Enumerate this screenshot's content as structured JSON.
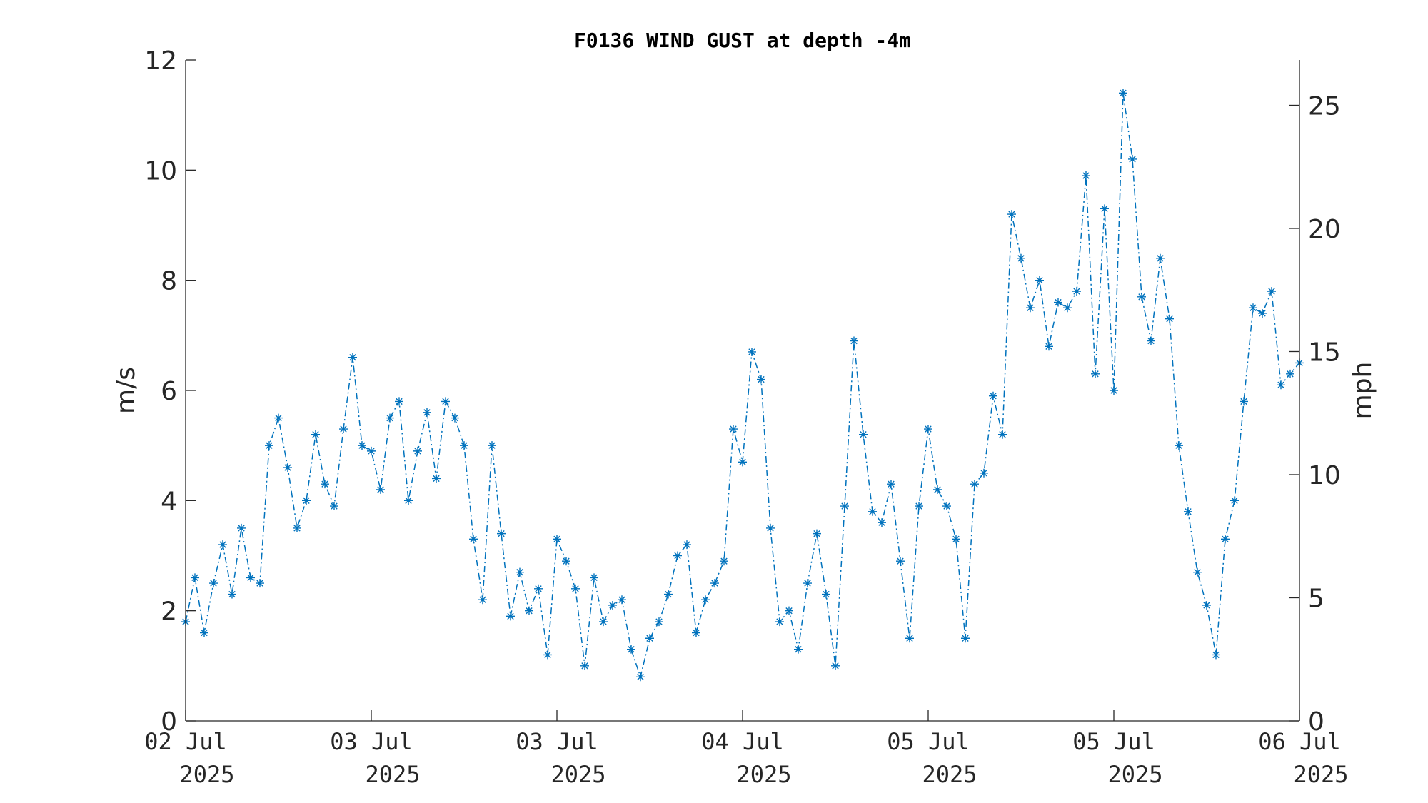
{
  "chart_data": {
    "type": "line",
    "title": "F0136 WIND GUST at depth -4m",
    "ylabel": "m/s",
    "ylabel_right": "mph",
    "ylim": [
      0,
      12
    ],
    "ylim_right": [
      0,
      26.84
    ],
    "yticks": [
      0,
      2,
      4,
      6,
      8,
      10,
      12
    ],
    "yticks_right": [
      0,
      5,
      10,
      15,
      20,
      25
    ],
    "xlim": [
      0,
      6
    ],
    "xticks": [
      {
        "line1": "02 Jul",
        "line2": "2025"
      },
      {
        "line1": "03 Jul",
        "line2": "2025"
      },
      {
        "line1": "03 Jul",
        "line2": "2025"
      },
      {
        "line1": "04 Jul",
        "line2": "2025"
      },
      {
        "line1": "05 Jul",
        "line2": "2025"
      },
      {
        "line1": "05 Jul",
        "line2": "2025"
      },
      {
        "line1": "06 Jul",
        "line2": "2025"
      }
    ],
    "line_style": "dash-dot",
    "marker": "asterisk",
    "color": "#0072BD",
    "grid": false,
    "series": [
      {
        "x": [
          0.0,
          0.05,
          0.1,
          0.15,
          0.2,
          0.25,
          0.3,
          0.35,
          0.4,
          0.45,
          0.5,
          0.55,
          0.6,
          0.65,
          0.7,
          0.75,
          0.8,
          0.85,
          0.9,
          0.95,
          1.0,
          1.05,
          1.1,
          1.15,
          1.2,
          1.25,
          1.3,
          1.35,
          1.4,
          1.45,
          1.5,
          1.55,
          1.6,
          1.65,
          1.7,
          1.75,
          1.8,
          1.85,
          1.9,
          1.95,
          2.0,
          2.05,
          2.1,
          2.15,
          2.2,
          2.25,
          2.3,
          2.35,
          2.4,
          2.45,
          2.5,
          2.55,
          2.6,
          2.65,
          2.7,
          2.75,
          2.8,
          2.85,
          2.9,
          2.95,
          3.0,
          3.05,
          3.1,
          3.15,
          3.2,
          3.25,
          3.3,
          3.35,
          3.4,
          3.45,
          3.5,
          3.55,
          3.6,
          3.65,
          3.7,
          3.75,
          3.8,
          3.85,
          3.9,
          3.95,
          4.0,
          4.05,
          4.1,
          4.15,
          4.2,
          4.25,
          4.3,
          4.35,
          4.4,
          4.45,
          4.5,
          4.55,
          4.6,
          4.65,
          4.7,
          4.75,
          4.8,
          4.85,
          4.9,
          4.95,
          5.0,
          5.05,
          5.1,
          5.15,
          5.2,
          5.25,
          5.3,
          5.35,
          5.4,
          5.45,
          5.5,
          5.55,
          5.6,
          5.65,
          5.7,
          5.75,
          5.8,
          5.85,
          5.9,
          5.95,
          6.0
        ],
        "y": [
          1.8,
          2.6,
          1.6,
          2.5,
          3.2,
          2.3,
          3.5,
          2.6,
          2.5,
          5.0,
          5.5,
          4.6,
          3.5,
          4.0,
          5.2,
          4.3,
          3.9,
          5.3,
          6.6,
          5.0,
          4.9,
          4.2,
          5.5,
          5.8,
          4.0,
          4.9,
          5.6,
          4.4,
          5.8,
          5.5,
          5.0,
          3.3,
          2.2,
          5.0,
          3.4,
          1.9,
          2.7,
          2.0,
          2.4,
          1.2,
          3.3,
          2.9,
          2.4,
          1.0,
          2.6,
          1.8,
          2.1,
          2.2,
          1.3,
          0.8,
          1.5,
          1.8,
          2.3,
          3.0,
          3.2,
          1.6,
          2.2,
          2.5,
          2.9,
          5.3,
          4.7,
          6.7,
          6.2,
          3.5,
          1.8,
          2.0,
          1.3,
          2.5,
          3.4,
          2.3,
          1.0,
          3.9,
          6.9,
          5.2,
          3.8,
          3.6,
          4.3,
          2.9,
          1.5,
          3.9,
          5.3,
          4.2,
          3.9,
          3.3,
          1.5,
          4.3,
          4.5,
          5.9,
          5.2,
          9.2,
          8.4,
          7.5,
          8.0,
          6.8,
          7.6,
          7.5,
          7.8,
          9.9,
          6.3,
          9.3,
          6.0,
          11.4,
          10.2,
          7.7,
          6.9,
          8.4,
          7.3,
          5.0,
          3.8,
          2.7,
          2.1,
          1.2,
          3.3,
          4.0,
          5.8,
          7.5,
          7.4,
          7.8,
          6.1,
          6.3,
          6.5
        ]
      }
    ]
  }
}
